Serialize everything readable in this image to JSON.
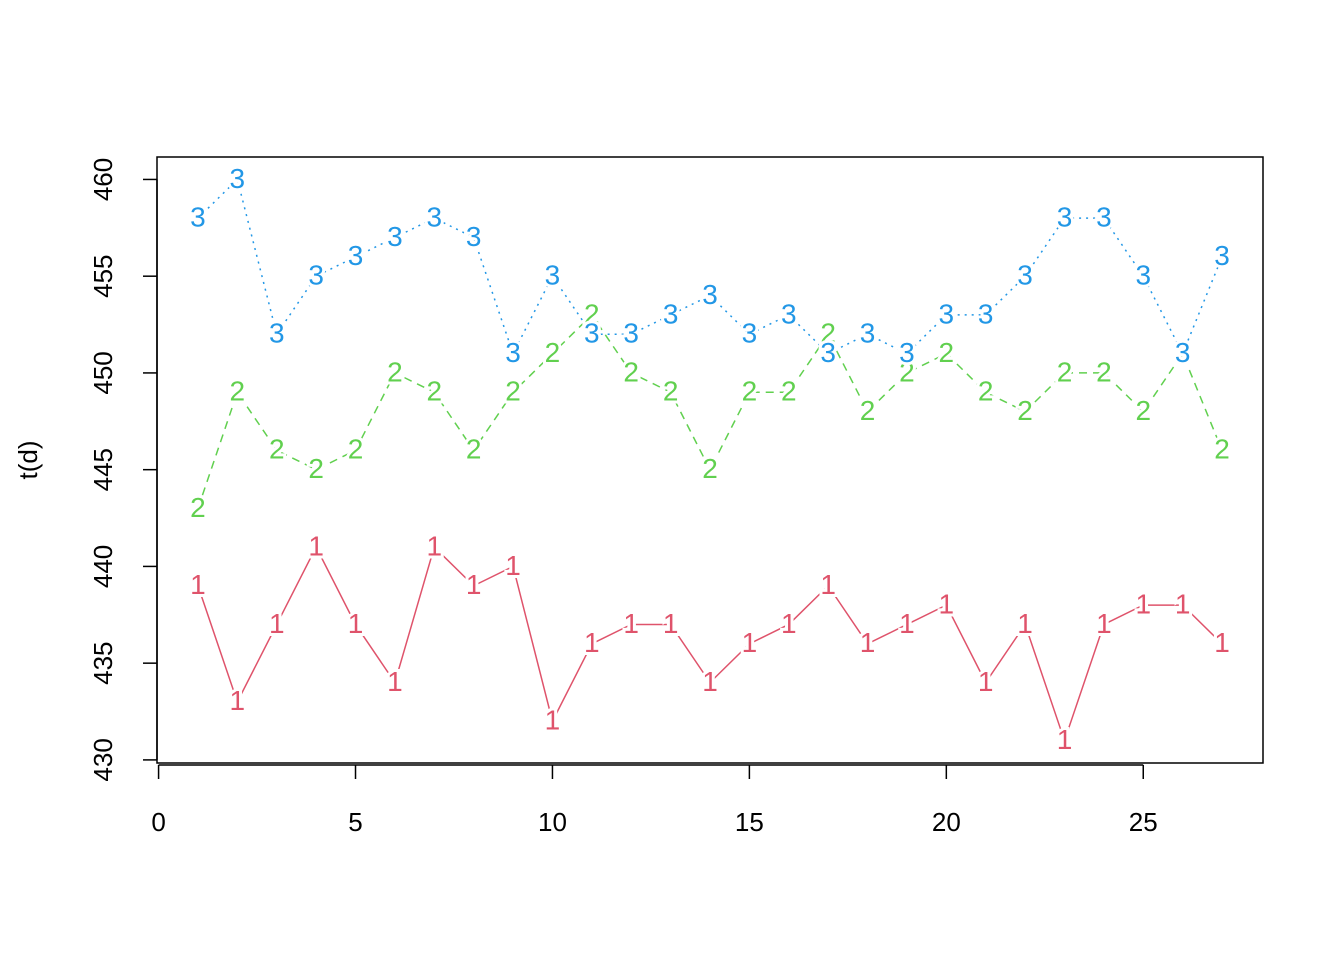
{
  "chart_data": {
    "type": "line",
    "y_label": "t(d)",
    "x": [
      1,
      2,
      3,
      4,
      5,
      6,
      7,
      8,
      9,
      10,
      11,
      12,
      13,
      14,
      15,
      16,
      17,
      18,
      19,
      20,
      21,
      22,
      23,
      24,
      25,
      26,
      27
    ],
    "series": [
      {
        "name": "1",
        "color": "#DF536B",
        "line_style": "solid",
        "values": [
          439,
          433,
          437,
          441,
          437,
          434,
          441,
          439,
          440,
          432,
          436,
          437,
          437,
          434,
          436,
          437,
          439,
          436,
          437,
          438,
          434,
          437,
          431,
          437,
          438,
          438,
          436
        ]
      },
      {
        "name": "2",
        "color": "#61D04F",
        "line_style": "dashed",
        "values": [
          443,
          449,
          446,
          445,
          446,
          450,
          449,
          446,
          449,
          451,
          453,
          450,
          449,
          445,
          449,
          449,
          452,
          448,
          450,
          451,
          449,
          448,
          450,
          450,
          448,
          451,
          446
        ]
      },
      {
        "name": "3",
        "color": "#2297E6",
        "line_style": "dotted",
        "values": [
          458,
          460,
          452,
          455,
          456,
          457,
          458,
          457,
          451,
          455,
          452,
          452,
          453,
          454,
          452,
          453,
          451,
          452,
          451,
          453,
          453,
          455,
          458,
          458,
          455,
          451,
          456
        ]
      }
    ],
    "xlim": [
      -0.04,
      28.04
    ],
    "ylim": [
      429.84,
      461.16
    ],
    "xticks": [
      0,
      5,
      10,
      15,
      20,
      25
    ],
    "yticks": [
      430,
      435,
      440,
      445,
      450,
      455,
      460
    ],
    "grid": false
  }
}
